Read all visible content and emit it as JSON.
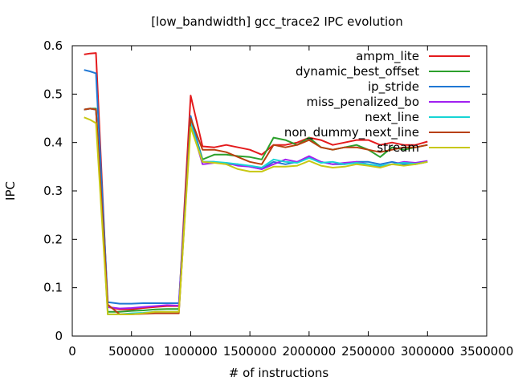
{
  "chart_data": {
    "type": "line",
    "title": "[low_bandwidth] gcc_trace2 IPC evolution",
    "xlabel": "# of instructions",
    "ylabel": "IPC",
    "xlim": [
      0,
      3500000
    ],
    "ylim": [
      0,
      0.6
    ],
    "grid": false,
    "legend_position": "top-right",
    "x_ticks": [
      0,
      500000,
      1000000,
      1500000,
      2000000,
      2500000,
      3000000,
      3500000
    ],
    "x_tick_labels": [
      "0",
      "500000",
      "1000000",
      "1500000",
      "2000000",
      "2500000",
      "3000000",
      "3500000"
    ],
    "y_ticks": [
      0,
      0.1,
      0.2,
      0.3,
      0.4,
      0.5,
      0.6
    ],
    "y_tick_labels": [
      "0",
      "0.1",
      "0.2",
      "0.3",
      "0.4",
      "0.5",
      "0.6"
    ],
    "x": [
      100000,
      150000,
      200000,
      300000,
      400000,
      500000,
      600000,
      700000,
      800000,
      900000,
      1000000,
      1100000,
      1200000,
      1300000,
      1400000,
      1500000,
      1600000,
      1700000,
      1800000,
      1900000,
      2000000,
      2100000,
      2200000,
      2300000,
      2400000,
      2500000,
      2600000,
      2700000,
      2800000,
      2900000,
      3000000
    ],
    "series": [
      {
        "name": "ampm_lite",
        "color": "#e41a1c",
        "values": [
          0.582,
          0.584,
          0.585,
          0.06,
          0.055,
          0.055,
          0.058,
          0.06,
          0.062,
          0.062,
          0.497,
          0.392,
          0.39,
          0.395,
          0.39,
          0.385,
          0.375,
          0.395,
          0.395,
          0.4,
          0.41,
          0.405,
          0.395,
          0.4,
          0.405,
          0.405,
          0.395,
          0.4,
          0.395,
          0.395,
          0.402
        ]
      },
      {
        "name": "dynamic_best_offset",
        "color": "#2ca02c",
        "values": [
          0.468,
          0.47,
          0.47,
          0.05,
          0.05,
          0.052,
          0.053,
          0.055,
          0.056,
          0.056,
          0.448,
          0.365,
          0.375,
          0.375,
          0.372,
          0.37,
          0.365,
          0.41,
          0.405,
          0.395,
          0.41,
          0.39,
          0.385,
          0.39,
          0.395,
          0.385,
          0.37,
          0.39,
          0.385,
          0.39,
          0.395
        ]
      },
      {
        "name": "ip_stride",
        "color": "#1f77d4",
        "values": [
          0.55,
          0.547,
          0.543,
          0.07,
          0.067,
          0.067,
          0.068,
          0.068,
          0.068,
          0.068,
          0.455,
          0.36,
          0.36,
          0.355,
          0.355,
          0.35,
          0.345,
          0.36,
          0.355,
          0.36,
          0.37,
          0.36,
          0.355,
          0.355,
          0.36,
          0.36,
          0.355,
          0.36,
          0.355,
          0.355,
          0.36
        ]
      },
      {
        "name": "miss_penalized_bo",
        "color": "#a020f0",
        "values": [
          0.468,
          0.47,
          0.468,
          0.06,
          0.057,
          0.058,
          0.06,
          0.062,
          0.064,
          0.063,
          0.44,
          0.355,
          0.358,
          0.358,
          0.352,
          0.35,
          0.345,
          0.355,
          0.365,
          0.36,
          0.372,
          0.36,
          0.355,
          0.358,
          0.36,
          0.355,
          0.35,
          0.355,
          0.36,
          0.358,
          0.362
        ]
      },
      {
        "name": "next_line",
        "color": "#17d4d4",
        "values": [
          0.468,
          0.47,
          0.468,
          0.045,
          0.045,
          0.047,
          0.048,
          0.05,
          0.05,
          0.05,
          0.44,
          0.36,
          0.36,
          0.358,
          0.355,
          0.352,
          0.348,
          0.365,
          0.36,
          0.358,
          0.368,
          0.358,
          0.36,
          0.355,
          0.358,
          0.355,
          0.352,
          0.355,
          0.358,
          0.356,
          0.36
        ]
      },
      {
        "name": "non_dummy_next_line",
        "color": "#b8400e",
        "values": [
          0.468,
          0.47,
          0.468,
          0.065,
          0.045,
          0.045,
          0.046,
          0.047,
          0.047,
          0.047,
          0.45,
          0.385,
          0.385,
          0.38,
          0.37,
          0.36,
          0.355,
          0.395,
          0.39,
          0.395,
          0.405,
          0.39,
          0.385,
          0.39,
          0.39,
          0.385,
          0.38,
          0.385,
          0.39,
          0.39,
          0.395
        ]
      },
      {
        "name": "stream",
        "color": "#c8c814",
        "values": [
          0.452,
          0.447,
          0.44,
          0.045,
          0.045,
          0.045,
          0.047,
          0.05,
          0.05,
          0.05,
          0.432,
          0.36,
          0.358,
          0.355,
          0.345,
          0.34,
          0.34,
          0.35,
          0.35,
          0.352,
          0.362,
          0.352,
          0.348,
          0.35,
          0.355,
          0.352,
          0.348,
          0.355,
          0.352,
          0.355,
          0.36
        ]
      }
    ]
  }
}
